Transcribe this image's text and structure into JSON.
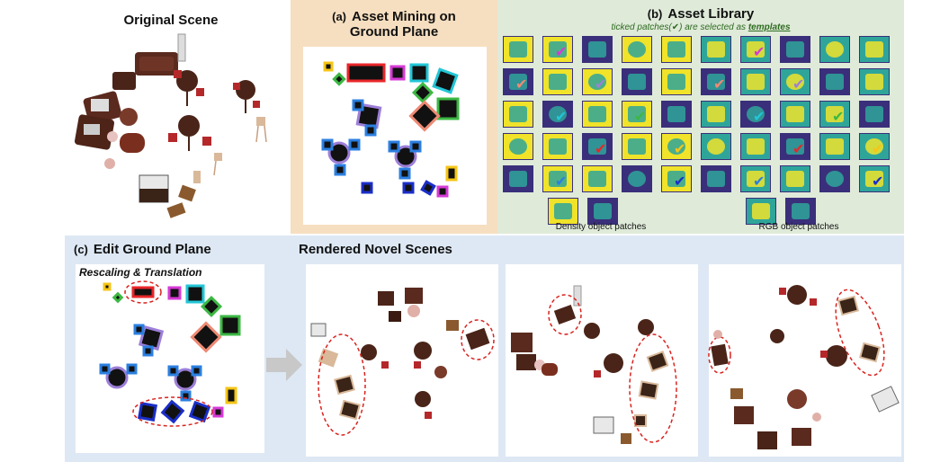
{
  "original": {
    "title": "Original Scene"
  },
  "panel_a": {
    "label": "(a)",
    "title_line1": "Asset Mining on",
    "title_line2": "Ground Plane"
  },
  "panel_b": {
    "label": "(b)",
    "title": "Asset Library",
    "note_prefix": "ticked patches(✔) are selected as ",
    "note_em": "templates",
    "density_caption": "Density object patches",
    "rgb_caption": "RGB object patches"
  },
  "panel_c": {
    "label": "(c)",
    "title": "Edit Ground Plane",
    "subtitle": "Rescaling & Translation",
    "rendered_title": "Rendered Novel Scenes"
  },
  "colors": {
    "panel_a_bg": "#f6dfc0",
    "panel_b_bg": "#dfead9",
    "panel_c_bg": "#dde8f4",
    "box_red": "#e8262a",
    "box_cyan": "#22c6d6",
    "box_green": "#3cb843",
    "box_purple": "#9d7fd8",
    "box_salmon": "#ee8a74",
    "box_blue": "#2b7fe0",
    "box_magenta": "#d63ad6",
    "box_yellow": "#f5c517",
    "box_darkblue": "#1a2ec8",
    "viridis_yellow": "#f0e32a",
    "viridis_teal": "#2fa59a",
    "viridis_navy": "#3a2f7a",
    "ellipse_dashed": "#d9231f",
    "arrow_gray": "#c8c8c8"
  }
}
